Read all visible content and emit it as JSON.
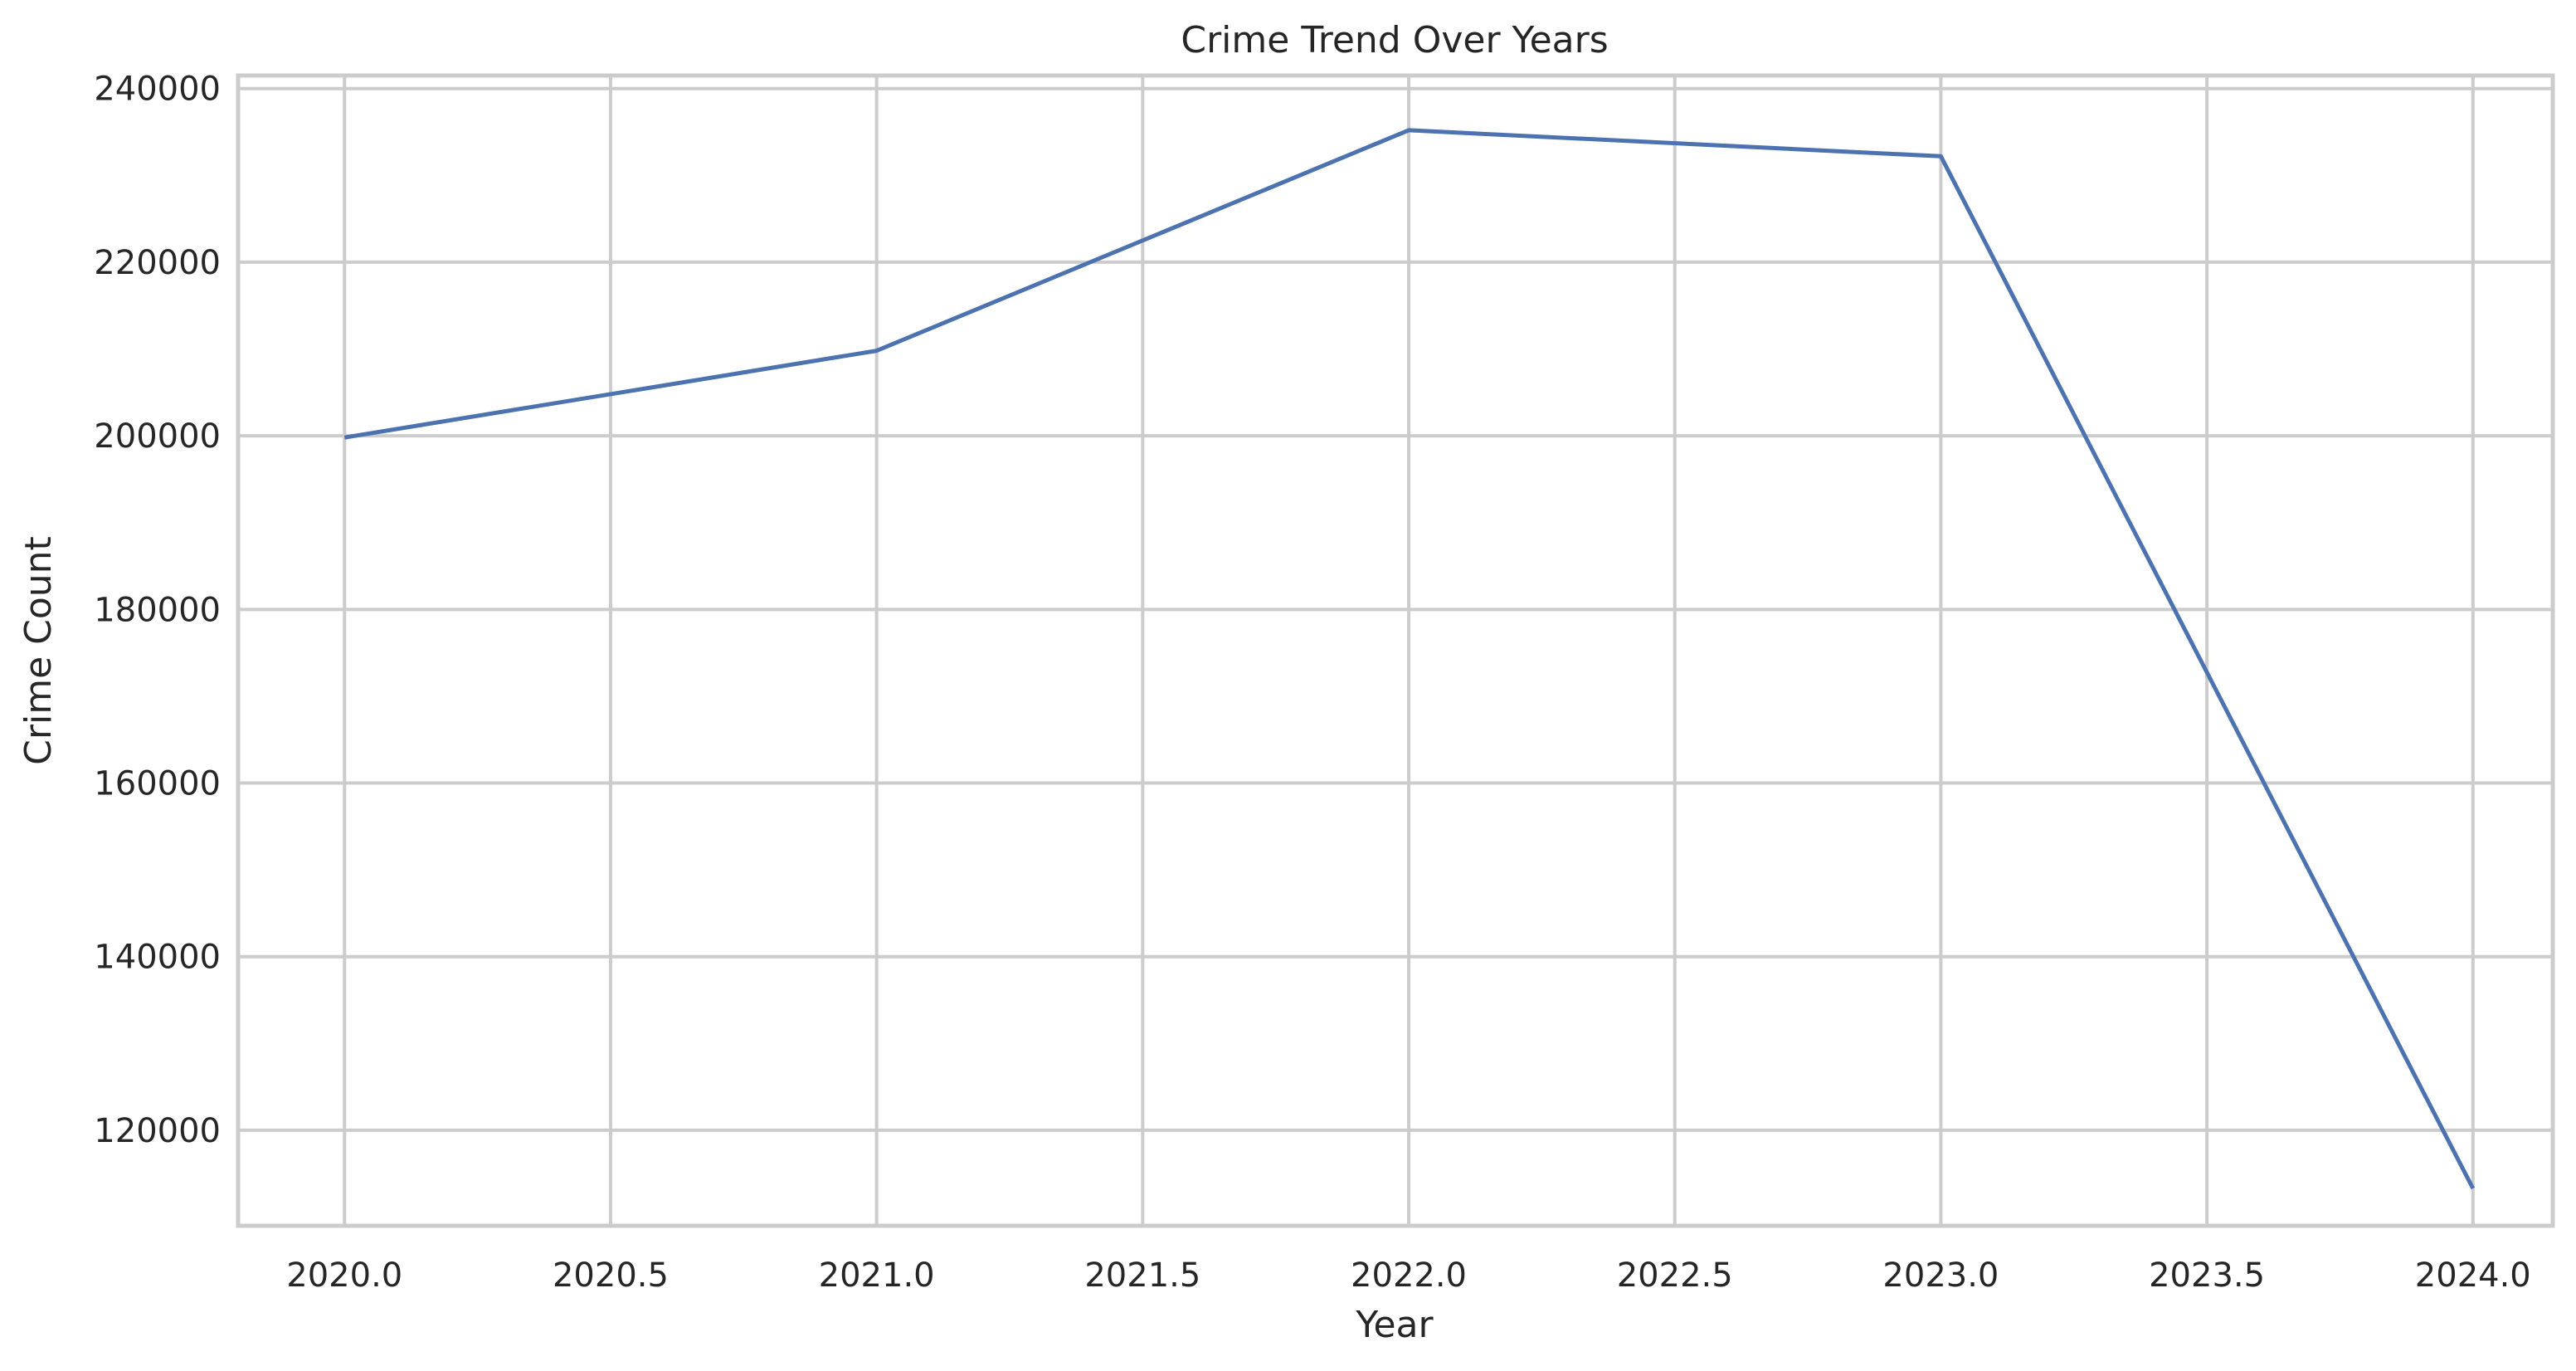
{
  "chart_data": {
    "type": "line",
    "title": "Crime Trend Over Years",
    "xlabel": "Year",
    "ylabel": "Crime Count",
    "xlim": [
      2019.8,
      2024.15
    ],
    "ylim": [
      109000,
      241500
    ],
    "x_ticks": [
      2020.0,
      2020.5,
      2021.0,
      2021.5,
      2022.0,
      2022.5,
      2023.0,
      2023.5,
      2024.0
    ],
    "x_tick_labels": [
      "2020.0",
      "2020.5",
      "2021.0",
      "2021.5",
      "2022.0",
      "2022.5",
      "2023.0",
      "2023.5",
      "2024.0"
    ],
    "y_ticks": [
      120000,
      140000,
      160000,
      180000,
      200000,
      220000,
      240000
    ],
    "y_tick_labels": [
      "120000",
      "140000",
      "160000",
      "180000",
      "200000",
      "220000",
      "240000"
    ],
    "grid": true,
    "x": [
      2020,
      2021,
      2022,
      2023,
      2024
    ],
    "series": [
      {
        "values": [
          199800,
          209800,
          235200,
          232200,
          113300
        ],
        "color": "#4c72b0"
      }
    ]
  }
}
